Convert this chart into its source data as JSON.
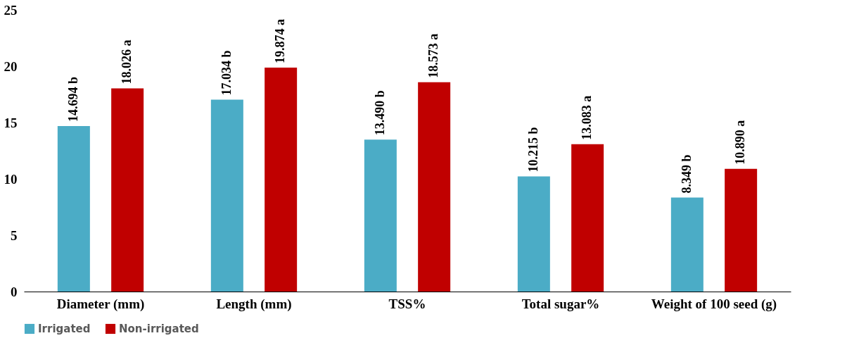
{
  "chart_data": {
    "type": "bar",
    "categories": [
      "Diameter (mm)",
      "Length (mm)",
      "TSS%",
      "Total sugar%",
      "Weight of 100 seed (g)"
    ],
    "series": [
      {
        "name": "Irrigated",
        "color": "#4bacc6",
        "values": [
          14.694,
          17.034,
          13.49,
          10.215,
          8.349
        ],
        "value_labels": [
          "14.694 b",
          "17.034 b",
          "13.490 b",
          "10.215 b",
          "8.349 b"
        ]
      },
      {
        "name": "Non-irrigated",
        "color": "#c00000",
        "values": [
          18.026,
          19.874,
          18.573,
          13.083,
          10.89
        ],
        "value_labels": [
          "18.026 a",
          "19.874 a",
          "18.573 a",
          "13.083 a",
          "10.890 a"
        ]
      }
    ],
    "ylim": [
      0,
      25
    ],
    "yticks": [
      0,
      5,
      10,
      15,
      20,
      25
    ],
    "grid": false,
    "legend": "bottom"
  }
}
